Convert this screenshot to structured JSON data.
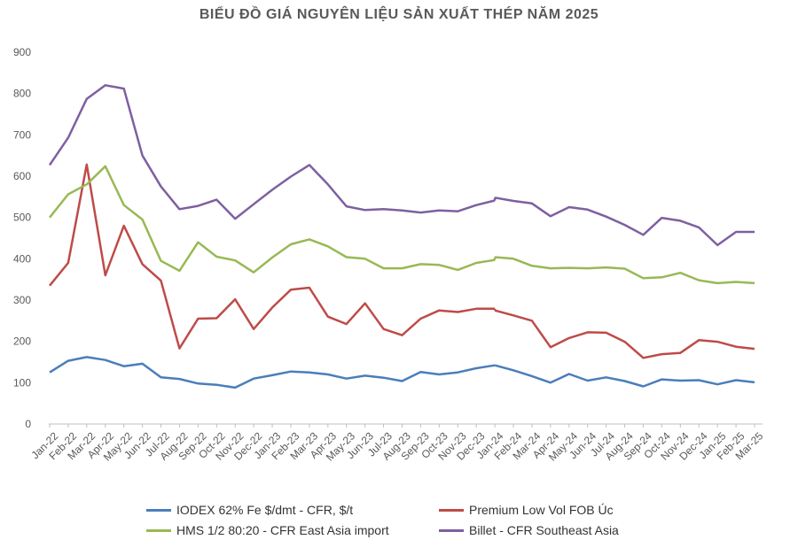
{
  "title": "BIỂU ĐỒ GIÁ NGUYÊN LIỆU SẢN XUẤT THÉP NĂM 2025",
  "chart_data": {
    "type": "line",
    "title": "BIỂU ĐỒ GIÁ NGUYÊN LIỆU SẢN XUẤT THÉP NĂM 2025",
    "ylim": [
      0,
      900
    ],
    "yticks": [
      0,
      100,
      200,
      300,
      400,
      500,
      600,
      700,
      800,
      900
    ],
    "grid": false,
    "legend_position": "bottom",
    "categories": [
      "Jan-22",
      "Feb-22",
      "Mar-22",
      "Apr-22",
      "May-22",
      "Jun-22",
      "Jul-22",
      "Aug-22",
      "Sep-22",
      "Oct-22",
      "Nov-22",
      "Dec-22",
      "Jan-23",
      "Feb-23",
      "Mar-23",
      "Apr-23",
      "May-23",
      "Jun-23",
      "Jul-23",
      "Aug-23",
      "Sep-23",
      "Oct-23",
      "Nov-23",
      "Dec-23",
      "Jan-24",
      "Feb-24",
      "Mar-24",
      "Apr-24",
      "May-24",
      "Jun-24",
      "Jul-24",
      "Aug-24",
      "Sep-24",
      "Oct-24",
      "Nov-24",
      "Dec-24",
      "Jan-25",
      "Feb-25",
      "Mar-25"
    ],
    "series": [
      {
        "name": "IODEX 62% Fe $/dmt - CFR, $/t",
        "color": "#4a7ebb",
        "values": [
          125,
          153,
          162,
          155,
          140,
          146,
          113,
          109,
          98,
          95,
          88,
          110,
          118,
          127,
          125,
          120,
          110,
          117,
          112,
          104,
          126,
          120,
          125,
          135,
          142,
          130,
          116,
          100,
          121,
          105,
          113,
          104,
          91,
          108,
          105,
          106,
          96,
          106,
          101
        ],
        "pre_jan24": 142
      },
      {
        "name": "Premium Low Vol FOB Úc",
        "color": "#be4b48",
        "values": [
          335,
          390,
          628,
          360,
          480,
          387,
          347,
          183,
          255,
          256,
          302,
          230,
          282,
          325,
          330,
          260,
          242,
          292,
          230,
          215,
          255,
          275,
          271,
          279,
          275,
          263,
          250,
          186,
          208,
          222,
          221,
          199,
          160,
          169,
          172,
          203,
          199,
          187,
          182
        ],
        "pre_jan24": 279
      },
      {
        "name": "HMS 1/2 80:20 - CFR East Asia import",
        "color": "#98b954",
        "values": [
          500,
          556,
          580,
          624,
          530,
          495,
          395,
          371,
          440,
          405,
          396,
          367,
          403,
          435,
          447,
          430,
          404,
          400,
          377,
          377,
          387,
          385,
          373,
          390,
          404,
          400,
          383,
          377,
          378,
          377,
          379,
          376,
          353,
          355,
          366,
          348,
          341,
          344,
          341
        ],
        "pre_jan24": 397
      },
      {
        "name": "Billet - CFR Southeast Asia",
        "color": "#7d60a0",
        "values": [
          627,
          693,
          787,
          820,
          812,
          650,
          575,
          520,
          528,
          543,
          497,
          532,
          567,
          599,
          627,
          580,
          527,
          518,
          520,
          517,
          512,
          517,
          515,
          530,
          548,
          540,
          534,
          503,
          525,
          519,
          502,
          482,
          458,
          499,
          492,
          476,
          433,
          465,
          465
        ],
        "pre_jan24": 541
      }
    ]
  },
  "legend": [
    {
      "label": "IODEX 62% Fe $/dmt - CFR, $/t",
      "color": "#4a7ebb"
    },
    {
      "label": "Premium Low Vol FOB Úc",
      "color": "#be4b48"
    },
    {
      "label": "HMS 1/2 80:20 - CFR East Asia import",
      "color": "#98b954"
    },
    {
      "label": "Billet - CFR Southeast Asia",
      "color": "#7d60a0"
    }
  ]
}
